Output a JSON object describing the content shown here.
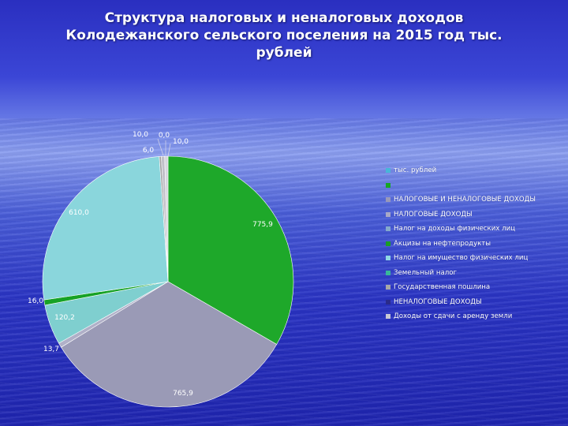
{
  "chart_data": {
    "type": "pie",
    "title": "Структура налоговых и неналоговых доходов Колодежанского сельского поселения на 2015 год тыс. рублей",
    "legend_position": "right",
    "categories": [
      "тыс. рублей",
      "",
      "НАЛОГОВЫЕ И НЕНАЛОГОВЫЕ ДОХОДЫ",
      "НАЛОГОВЫЕ ДОХОДЫ",
      "Налог на доходы физических лиц",
      "Акцизы на нефтепродукты",
      "Налог на имущество физических лиц",
      "Земельный налог",
      "Государственная пошлина",
      "НЕНАЛОГОВЫЕ ДОХОДЫ",
      "Доходы от сдачи с аренду земли"
    ],
    "colors": [
      "#48b6d8",
      "#16a623",
      "#9999b8",
      "#a8a8c6",
      "#84a9cc",
      "#1a9d28",
      "#8fd7e4",
      "#38b79a",
      "#a7a7a7",
      "#2a2a8a",
      "#c8c8d4"
    ],
    "slices": [
      {
        "category": "",
        "value": 775.9,
        "label": "775,9",
        "color": "#1ea82a"
      },
      {
        "category": "НАЛОГОВЫЕ И НЕНАЛОГОВЫЕ ДОХОДЫ",
        "value": 765.9,
        "label": "765,9",
        "color": "#9a9ab6"
      },
      {
        "category": "НАЛОГОВЫЕ ДОХОДЫ",
        "value": 13.7,
        "label": "13,7",
        "color": "#b0b0c8"
      },
      {
        "category": "Налог на доходы физических лиц",
        "value": 120.2,
        "label": "120,2",
        "color": "#7fcfcf"
      },
      {
        "category": "Акцизы на нефтепродукты",
        "value": 16.0,
        "label": "16,0",
        "color": "#17a226"
      },
      {
        "category": "Налог на имущество физических лиц",
        "value": 610.0,
        "label": "610,0",
        "color": "#8ad6dc"
      },
      {
        "category": "Земельный налог",
        "value": 6.0,
        "label": "6,0",
        "color": "#a0a0a0"
      },
      {
        "category": "Государственная пошлина",
        "value": 10.0,
        "label": "10,0",
        "color": "#c0c0c8"
      },
      {
        "category": "НЕНАЛОГОВЫЕ ДОХОДЫ",
        "value": 0.0,
        "label": "0,0",
        "color": "#2a2a8a"
      },
      {
        "category": "Доходы от сдачи с аренду земли",
        "value": 10.0,
        "label": "10,0",
        "color": "#d6d6de"
      }
    ]
  }
}
